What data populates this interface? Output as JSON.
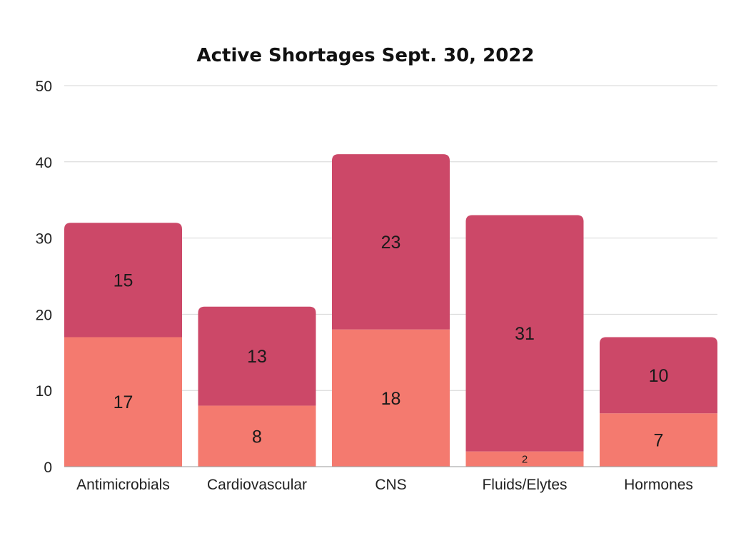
{
  "chart_data": {
    "type": "bar",
    "stacked": true,
    "title": "Active Shortages Sept. 30, 2022",
    "xlabel": "",
    "ylabel": "",
    "ylim": [
      0,
      50
    ],
    "yticks": [
      0,
      10,
      20,
      30,
      40,
      50
    ],
    "grid": true,
    "categories": [
      "Antimicrobials",
      "Cardiovascular",
      "CNS",
      "Fluids/Elytes",
      "Hormones"
    ],
    "series": [
      {
        "name": "lower",
        "color": "#f47a6f",
        "values": [
          17,
          8,
          18,
          2,
          7
        ]
      },
      {
        "name": "upper",
        "color": "#cc4868",
        "values": [
          15,
          13,
          23,
          31,
          10
        ]
      }
    ]
  }
}
